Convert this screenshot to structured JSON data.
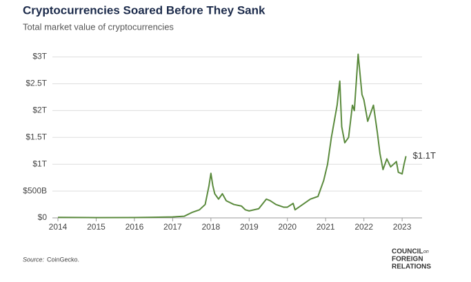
{
  "chart_data": {
    "type": "line",
    "title": "Cryptocurrencies Soared Before They Sank",
    "subtitle": "Total market value of cryptocurrencies",
    "x": [
      2014,
      2015,
      2016,
      2016.5,
      2017,
      2017.3,
      2017.5,
      2017.7,
      2017.85,
      2017.95,
      2018.0,
      2018.05,
      2018.1,
      2018.2,
      2018.3,
      2018.4,
      2018.6,
      2018.8,
      2018.9,
      2019.0,
      2019.25,
      2019.45,
      2019.55,
      2019.7,
      2019.9,
      2020.0,
      2020.15,
      2020.2,
      2020.4,
      2020.6,
      2020.8,
      2020.95,
      2021.05,
      2021.15,
      2021.3,
      2021.37,
      2021.42,
      2021.5,
      2021.6,
      2021.7,
      2021.75,
      2021.85,
      2021.95,
      2022.0,
      2022.1,
      2022.25,
      2022.35,
      2022.42,
      2022.5,
      2022.6,
      2022.7,
      2022.85,
      2022.9,
      2023.0,
      2023.05,
      2023.1
    ],
    "series": [
      {
        "name": "Total market value",
        "color": "#5a8a3c",
        "values": [
          0.01,
          0.005,
          0.007,
          0.012,
          0.018,
          0.03,
          0.1,
          0.15,
          0.25,
          0.6,
          0.83,
          0.6,
          0.45,
          0.35,
          0.45,
          0.32,
          0.25,
          0.22,
          0.15,
          0.13,
          0.17,
          0.35,
          0.32,
          0.25,
          0.2,
          0.2,
          0.27,
          0.15,
          0.25,
          0.35,
          0.4,
          0.7,
          1.0,
          1.5,
          2.1,
          2.55,
          1.7,
          1.4,
          1.5,
          2.1,
          2.0,
          3.05,
          2.3,
          2.2,
          1.8,
          2.1,
          1.6,
          1.2,
          0.9,
          1.1,
          0.95,
          1.05,
          0.85,
          0.82,
          1.0,
          1.15
        ]
      }
    ],
    "end_label": "$1.1T",
    "xlim": [
      2014,
      2023.25
    ],
    "xticks": [
      2014,
      2015,
      2016,
      2017,
      2018,
      2019,
      2020,
      2021,
      2022,
      2023
    ],
    "ylim": [
      0,
      3.2
    ],
    "yticks": [
      {
        "value": 0,
        "label": "$0"
      },
      {
        "value": 0.5,
        "label": "$500B"
      },
      {
        "value": 1,
        "label": "$1T"
      },
      {
        "value": 1.5,
        "label": "$1.5T"
      },
      {
        "value": 2,
        "label": "$2T"
      },
      {
        "value": 2.5,
        "label": "$2.5T"
      },
      {
        "value": 3,
        "label": "$3T"
      }
    ],
    "grid": true,
    "source_label": "Source:",
    "source": "CoinGecko.",
    "logo": [
      "COUNCIL",
      "on",
      "FOREIGN",
      "RELATIONS"
    ]
  }
}
